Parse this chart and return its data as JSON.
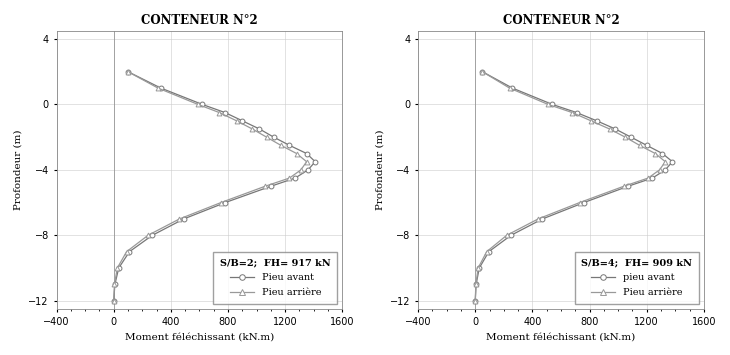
{
  "chart1": {
    "title": "CONTENEUR N°2",
    "legend_text": "S/B=2;  FH= 917 kN",
    "xlabel": "Moment féléchissant (kN.m)",
    "ylabel": "Profondeur (m)",
    "xlim": [
      -400,
      1600
    ],
    "ylim": [
      -12.5,
      4.5
    ],
    "xticks": [
      -400,
      0,
      400,
      800,
      1200,
      1600
    ],
    "yticks": [
      4,
      0,
      -4,
      -8,
      -12
    ],
    "pieu_avant_depth": [
      2.0,
      1.0,
      0.0,
      -0.5,
      -1.0,
      -1.5,
      -2.0,
      -2.5,
      -3.0,
      -3.5,
      -4.0,
      -4.5,
      -5.0,
      -6.0,
      -7.0,
      -8.0,
      -9.0,
      -10.0,
      -11.0,
      -12.0
    ],
    "pieu_avant_moment": [
      100,
      330,
      620,
      780,
      900,
      1020,
      1120,
      1230,
      1350,
      1410,
      1360,
      1270,
      1100,
      780,
      490,
      270,
      110,
      35,
      8,
      0
    ],
    "pieu_arriere_depth": [
      2.0,
      1.0,
      0.0,
      -0.5,
      -1.0,
      -1.5,
      -2.0,
      -2.5,
      -3.0,
      -3.5,
      -4.0,
      -4.5,
      -5.0,
      -6.0,
      -7.0,
      -8.0,
      -9.0,
      -10.0,
      -11.0,
      -12.0
    ],
    "pieu_arriere_moment": [
      100,
      310,
      590,
      740,
      860,
      970,
      1070,
      1170,
      1280,
      1350,
      1310,
      1230,
      1060,
      750,
      460,
      240,
      90,
      25,
      5,
      0
    ],
    "legend1": "Pieu avant",
    "legend2": "Pieu arrière",
    "line_color1": "#777777",
    "line_color2": "#999999"
  },
  "chart2": {
    "title": "CONTENEUR N°2",
    "legend_text": "S/B=4;  FH= 909 kN",
    "xlabel": "Moment féléchissant (kN.m)",
    "ylabel": "Profondeur (m)",
    "xlim": [
      -400,
      1600
    ],
    "ylim": [
      -12.5,
      4.5
    ],
    "xticks": [
      -400,
      0,
      400,
      800,
      1200,
      1600
    ],
    "yticks": [
      4,
      0,
      -4,
      -8,
      -12
    ],
    "pieu_avant_depth": [
      2.0,
      1.0,
      0.0,
      -0.5,
      -1.0,
      -1.5,
      -2.0,
      -2.5,
      -3.0,
      -3.5,
      -4.0,
      -4.5,
      -5.0,
      -6.0,
      -7.0,
      -8.0,
      -9.0,
      -10.0,
      -11.0,
      -12.0
    ],
    "pieu_avant_moment": [
      50,
      260,
      540,
      710,
      850,
      980,
      1090,
      1200,
      1310,
      1380,
      1330,
      1240,
      1070,
      760,
      470,
      250,
      95,
      28,
      6,
      0
    ],
    "pieu_arriere_depth": [
      2.0,
      1.0,
      0.0,
      -0.5,
      -1.0,
      -1.5,
      -2.0,
      -2.5,
      -3.0,
      -3.5,
      -4.0,
      -4.5,
      -5.0,
      -6.0,
      -7.0,
      -8.0,
      -9.0,
      -10.0,
      -11.0,
      -12.0
    ],
    "pieu_arriere_moment": [
      50,
      240,
      510,
      680,
      810,
      940,
      1050,
      1150,
      1260,
      1330,
      1290,
      1210,
      1040,
      730,
      440,
      220,
      80,
      20,
      4,
      0
    ],
    "legend1": "pieu avant",
    "legend2": "Pieu arrière",
    "line_color1": "#777777",
    "line_color2": "#999999"
  },
  "bg_color": "#ffffff",
  "grid_color": "#cccccc",
  "figsize": [
    7.3,
    3.55
  ],
  "dpi": 100
}
